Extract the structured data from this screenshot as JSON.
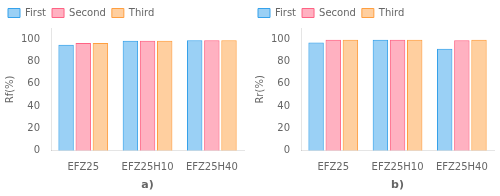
{
  "chart_data": [
    {
      "type": "bar",
      "xlabel": "a)",
      "ylabel": "Rf(%)",
      "categories": [
        "EFZ25",
        "EFZ25H10",
        "EFZ25H40"
      ],
      "series": [
        {
          "name": "First",
          "values": [
            95,
            98.5,
            99
          ]
        },
        {
          "name": "Second",
          "values": [
            96.5,
            98.5,
            99
          ]
        },
        {
          "name": "Third",
          "values": [
            96.5,
            98.5,
            99
          ]
        }
      ],
      "ylim": [
        0,
        110
      ],
      "yticks": [
        0,
        20,
        40,
        60,
        80,
        100
      ],
      "grid": false,
      "legend": "upper left"
    },
    {
      "type": "bar",
      "xlabel": "b)",
      "ylabel": "Rr(%)",
      "categories": [
        "EFZ25",
        "EFZ25H10",
        "EFZ25H40"
      ],
      "series": [
        {
          "name": "First",
          "values": [
            97,
            99.5,
            91.5
          ]
        },
        {
          "name": "Second",
          "values": [
            99.5,
            99.5,
            99
          ]
        },
        {
          "name": "Third",
          "values": [
            99.5,
            99.5,
            99.5
          ]
        }
      ],
      "ylim": [
        0,
        110
      ],
      "yticks": [
        0,
        20,
        40,
        60,
        80,
        100
      ],
      "grid": false,
      "legend": "upper left"
    }
  ]
}
